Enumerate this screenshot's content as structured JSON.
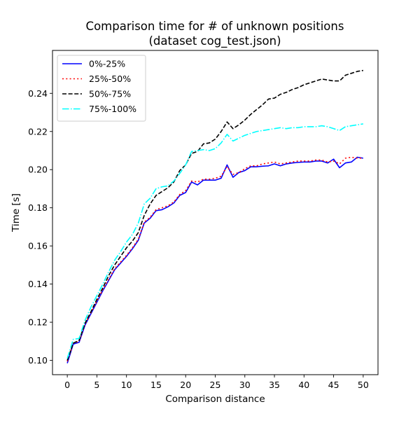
{
  "chart_data": {
    "type": "line",
    "title": "Comparison time for # of unknown positions",
    "subtitle": "(dataset cog_test.json)",
    "xlabel": "Comparison distance",
    "ylabel": "Time [s]",
    "xlim": [
      -2.5,
      52.5
    ],
    "ylim": [
      0.0925,
      0.2625
    ],
    "xticks": [
      0,
      5,
      10,
      15,
      20,
      25,
      30,
      35,
      40,
      45,
      50
    ],
    "xtick_labels": [
      "0",
      "5",
      "10",
      "15",
      "20",
      "25",
      "30",
      "35",
      "40",
      "45",
      "50"
    ],
    "yticks": [
      0.1,
      0.12,
      0.14,
      0.16,
      0.18,
      0.2,
      0.22,
      0.24
    ],
    "ytick_labels": [
      "0.10",
      "0.12",
      "0.14",
      "0.16",
      "0.18",
      "0.20",
      "0.22",
      "0.24"
    ],
    "grid": false,
    "legend_position": "top-left",
    "x": [
      0,
      1,
      2,
      3,
      4,
      5,
      6,
      7,
      8,
      9,
      10,
      11,
      12,
      13,
      14,
      15,
      16,
      17,
      18,
      19,
      20,
      21,
      22,
      23,
      24,
      25,
      26,
      27,
      28,
      29,
      30,
      31,
      32,
      33,
      34,
      35,
      36,
      37,
      38,
      39,
      40,
      41,
      42,
      43,
      44,
      45,
      46,
      47,
      48,
      49,
      50
    ],
    "series": [
      {
        "name": "0%-25%",
        "color": "#0000ff",
        "style": "solid",
        "values": [
          0.0985,
          0.1085,
          0.1095,
          0.1185,
          0.1245,
          0.1305,
          0.1365,
          0.142,
          0.1475,
          0.151,
          0.1545,
          0.1585,
          0.163,
          0.172,
          0.1745,
          0.1785,
          0.179,
          0.1805,
          0.1825,
          0.1865,
          0.188,
          0.1935,
          0.192,
          0.1945,
          0.1945,
          0.1945,
          0.1955,
          0.2025,
          0.196,
          0.1985,
          0.1995,
          0.2015,
          0.2015,
          0.2018,
          0.202,
          0.203,
          0.202,
          0.203,
          0.2035,
          0.2038,
          0.204,
          0.204,
          0.2045,
          0.2045,
          0.2035,
          0.2055,
          0.201,
          0.2035,
          0.204,
          0.2065,
          0.206
        ]
      },
      {
        "name": "25%-50%",
        "color": "#ff0000",
        "style": "dotted",
        "values": [
          0.0995,
          0.109,
          0.11,
          0.119,
          0.125,
          0.131,
          0.137,
          0.1425,
          0.148,
          0.1515,
          0.155,
          0.159,
          0.1635,
          0.1725,
          0.175,
          0.179,
          0.18,
          0.181,
          0.183,
          0.187,
          0.189,
          0.194,
          0.1935,
          0.195,
          0.195,
          0.1955,
          0.1965,
          0.2015,
          0.1975,
          0.1985,
          0.2005,
          0.202,
          0.202,
          0.203,
          0.2035,
          0.204,
          0.203,
          0.2035,
          0.204,
          0.2045,
          0.2045,
          0.2045,
          0.205,
          0.205,
          0.204,
          0.2045,
          0.203,
          0.206,
          0.2065,
          0.206,
          0.206
        ]
      },
      {
        "name": "50%-75%",
        "color": "#000000",
        "style": "dashed",
        "values": [
          0.1,
          0.109,
          0.1105,
          0.1195,
          0.1255,
          0.132,
          0.138,
          0.1445,
          0.15,
          0.1545,
          0.159,
          0.1625,
          0.167,
          0.176,
          0.182,
          0.1865,
          0.1885,
          0.1905,
          0.1935,
          0.1995,
          0.2025,
          0.2085,
          0.2095,
          0.2135,
          0.214,
          0.216,
          0.22,
          0.225,
          0.2215,
          0.2235,
          0.226,
          0.229,
          0.2315,
          0.234,
          0.237,
          0.2375,
          0.2395,
          0.2405,
          0.242,
          0.243,
          0.2445,
          0.2455,
          0.2465,
          0.2475,
          0.247,
          0.2465,
          0.2465,
          0.2495,
          0.2505,
          0.2515,
          0.252
        ]
      },
      {
        "name": "75%-100%",
        "color": "#00ffff",
        "style": "dashdot",
        "values": [
          0.101,
          0.111,
          0.1115,
          0.121,
          0.128,
          0.134,
          0.14,
          0.1465,
          0.1525,
          0.157,
          0.162,
          0.166,
          0.172,
          0.182,
          0.185,
          0.19,
          0.191,
          0.1915,
          0.194,
          0.198,
          0.2025,
          0.2095,
          0.21,
          0.2105,
          0.21,
          0.211,
          0.214,
          0.2185,
          0.215,
          0.2165,
          0.218,
          0.219,
          0.22,
          0.2205,
          0.221,
          0.2215,
          0.222,
          0.2215,
          0.222,
          0.222,
          0.2225,
          0.2225,
          0.2225,
          0.223,
          0.2225,
          0.2215,
          0.2205,
          0.2225,
          0.223,
          0.2235,
          0.224
        ]
      }
    ]
  }
}
